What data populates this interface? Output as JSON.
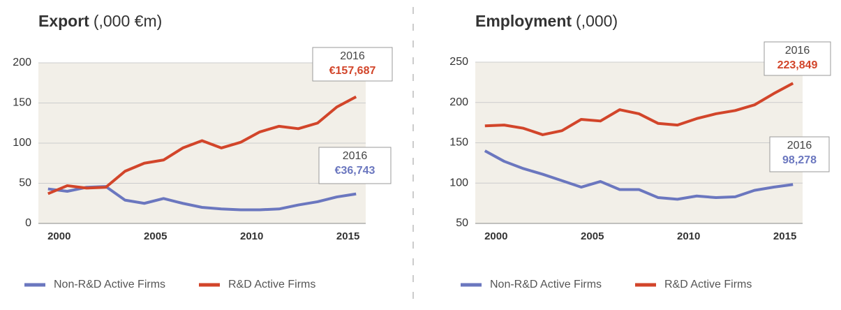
{
  "chart_data": [
    {
      "type": "line",
      "title": "Export",
      "title_unit": "(,000 €m)",
      "x": [
        2000,
        2001,
        2002,
        2003,
        2004,
        2005,
        2006,
        2007,
        2008,
        2009,
        2010,
        2011,
        2012,
        2013,
        2014,
        2015,
        2016
      ],
      "series": [
        {
          "name": "Non-R&D Active Firms",
          "color": "#6b77bf",
          "values": [
            43,
            40,
            45,
            46,
            29,
            25,
            31,
            25,
            20,
            18,
            17,
            17,
            18,
            23,
            27,
            33,
            36.743
          ]
        },
        {
          "name": "R&D Active Firms",
          "color": "#d2452a",
          "values": [
            37,
            47,
            44,
            45,
            65,
            75,
            79,
            94,
            103,
            94,
            101,
            114,
            121,
            118,
            125,
            145,
            157.687
          ]
        }
      ],
      "annotations": [
        {
          "label": "2016",
          "value": "€36,743",
          "series": 0
        },
        {
          "label": "2016",
          "value": "€157,687",
          "series": 1
        }
      ],
      "xlim": [
        1999.5,
        2016.5
      ],
      "xticks": [
        2000,
        2005,
        2010,
        2015
      ],
      "ylim": [
        0,
        200
      ],
      "yticks": [
        0,
        50,
        100,
        150,
        200
      ],
      "grid": true
    },
    {
      "type": "line",
      "title": "Employment",
      "title_unit": "(,000)",
      "x": [
        2000,
        2001,
        2002,
        2003,
        2004,
        2005,
        2006,
        2007,
        2008,
        2009,
        2010,
        2011,
        2012,
        2013,
        2014,
        2015,
        2016
      ],
      "series": [
        {
          "name": "Non-R&D Active Firms",
          "color": "#6b77bf",
          "values": [
            140,
            127,
            118,
            111,
            103,
            95,
            102,
            92,
            92,
            82,
            80,
            84,
            82,
            83,
            91,
            95,
            98.278
          ]
        },
        {
          "name": "R&D Active Firms",
          "color": "#d2452a",
          "values": [
            171,
            172,
            168,
            160,
            165,
            179,
            177,
            191,
            186,
            174,
            172,
            180,
            186,
            190,
            197,
            211,
            223.849
          ]
        }
      ],
      "annotations": [
        {
          "label": "2016",
          "value": "98,278",
          "series": 0
        },
        {
          "label": "2016",
          "value": "223,849",
          "series": 1
        }
      ],
      "xlim": [
        1999.5,
        2016.5
      ],
      "xticks": [
        2000,
        2005,
        2010,
        2015
      ],
      "ylim": [
        50,
        250
      ],
      "yticks": [
        50,
        100,
        150,
        200,
        250
      ],
      "grid": true
    }
  ]
}
